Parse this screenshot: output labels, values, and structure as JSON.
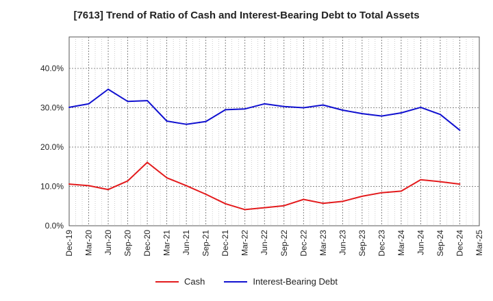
{
  "chart_data": {
    "type": "line",
    "title": "[7613]  Trend of Ratio of Cash and Interest-Bearing Debt to Total Assets",
    "x": [
      "Dec-19",
      "Mar-20",
      "Jun-20",
      "Sep-20",
      "Dec-20",
      "Mar-21",
      "Jun-21",
      "Sep-21",
      "Dec-21",
      "Mar-22",
      "Jun-22",
      "Sep-22",
      "Dec-22",
      "Mar-23",
      "Jun-23",
      "Sep-23",
      "Dec-23",
      "Mar-24",
      "Jun-24",
      "Sep-24",
      "Dec-24",
      "Mar-25"
    ],
    "ylim": [
      0,
      48
    ],
    "yticks": [
      0,
      10,
      20,
      30,
      40
    ],
    "ytick_labels": [
      "0.0%",
      "10.0%",
      "20.0%",
      "30.0%",
      "40.0%"
    ],
    "grid": true,
    "legend_position": "bottom",
    "series": [
      {
        "name": "Cash",
        "color": "#e31a1c",
        "values": [
          10.6,
          10.2,
          9.2,
          11.4,
          16.1,
          12.2,
          10.2,
          8.0,
          5.6,
          4.1,
          4.6,
          5.1,
          6.7,
          5.7,
          6.2,
          7.5,
          8.4,
          8.8,
          11.7,
          11.2,
          10.6,
          null
        ]
      },
      {
        "name": "Interest-Bearing Debt",
        "color": "#1010d0",
        "values": [
          30.1,
          31.0,
          34.7,
          31.6,
          31.8,
          26.6,
          25.8,
          26.5,
          29.5,
          29.7,
          31.0,
          30.3,
          30.0,
          30.7,
          29.4,
          28.5,
          27.9,
          28.7,
          30.1,
          28.3,
          24.3,
          null
        ]
      }
    ]
  }
}
